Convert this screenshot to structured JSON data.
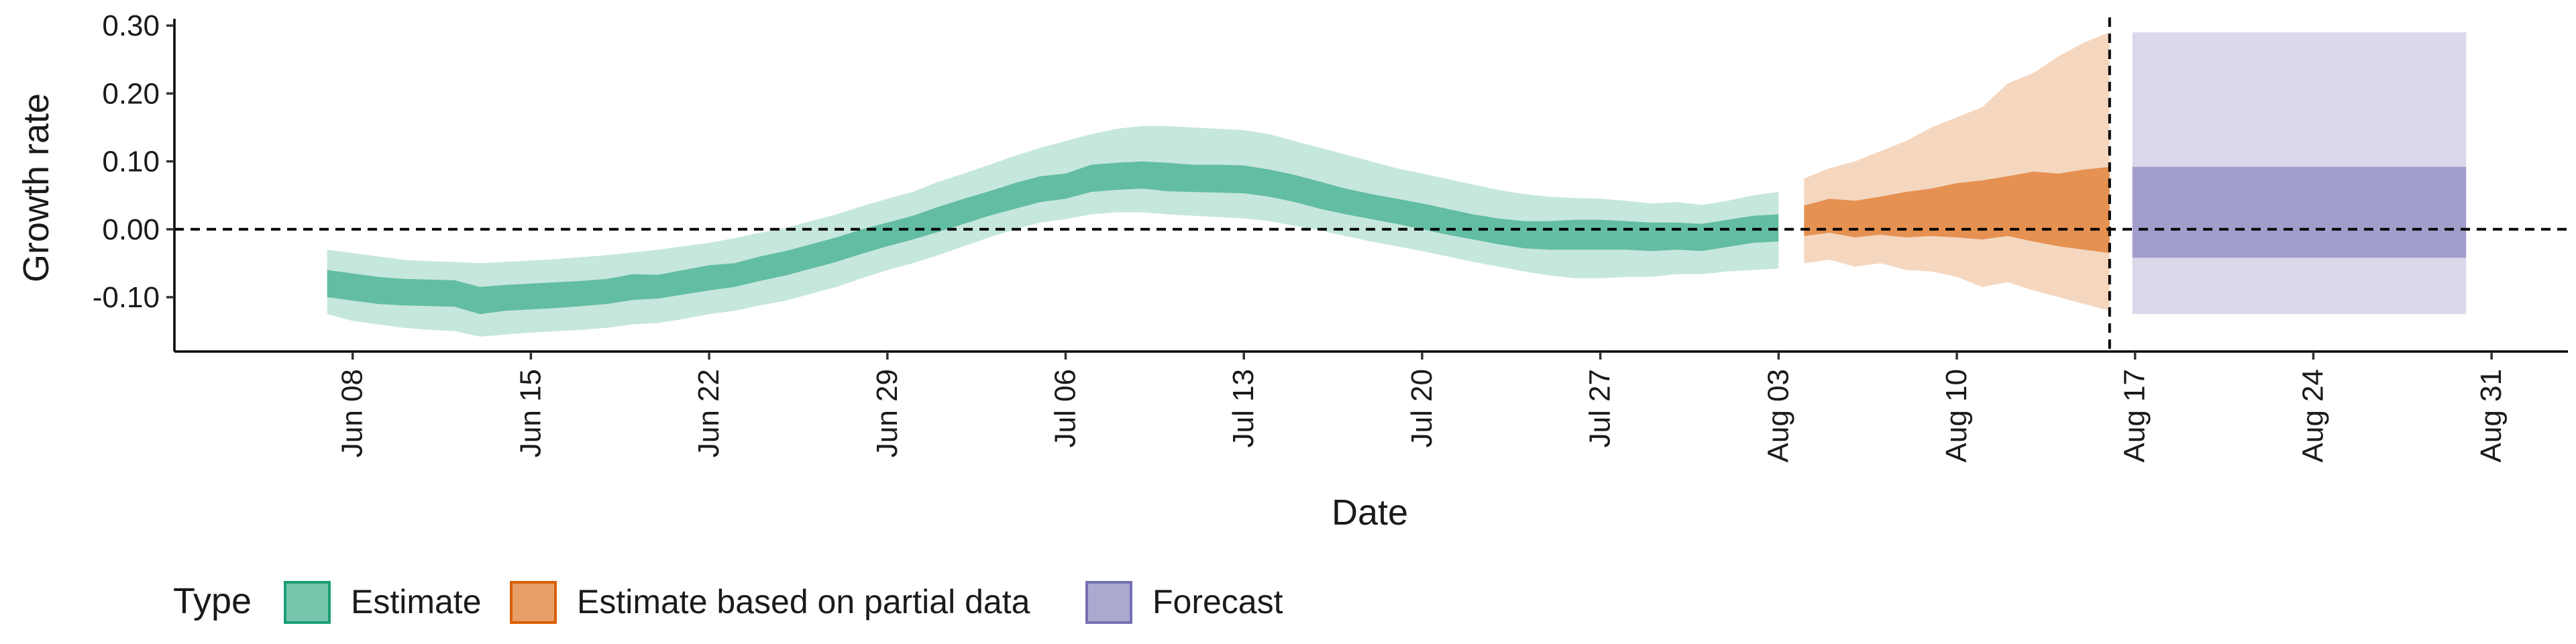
{
  "chart_data": {
    "type": "area",
    "xlabel": "Date",
    "ylabel": "Growth rate",
    "x_range": [
      "2020-06-01",
      "2020-09-03"
    ],
    "ylim": [
      -0.18,
      0.31
    ],
    "y_ticks": [
      {
        "value": 0.3,
        "label": "0.30"
      },
      {
        "value": 0.2,
        "label": "0.20"
      },
      {
        "value": 0.1,
        "label": "0.10"
      },
      {
        "value": 0.0,
        "label": "0.00"
      },
      {
        "value": -0.1,
        "label": "-0.10"
      }
    ],
    "x_ticks": [
      {
        "date": "2020-06-08",
        "label": "Jun 08"
      },
      {
        "date": "2020-06-15",
        "label": "Jun 15"
      },
      {
        "date": "2020-06-22",
        "label": "Jun 22"
      },
      {
        "date": "2020-06-29",
        "label": "Jun 29"
      },
      {
        "date": "2020-07-06",
        "label": "Jul 06"
      },
      {
        "date": "2020-07-13",
        "label": "Jul 13"
      },
      {
        "date": "2020-07-20",
        "label": "Jul 20"
      },
      {
        "date": "2020-07-27",
        "label": "Jul 27"
      },
      {
        "date": "2020-08-03",
        "label": "Aug 03"
      },
      {
        "date": "2020-08-10",
        "label": "Aug 10"
      },
      {
        "date": "2020-08-17",
        "label": "Aug 17"
      },
      {
        "date": "2020-08-24",
        "label": "Aug 24"
      },
      {
        "date": "2020-08-31",
        "label": "Aug 31"
      }
    ],
    "reference_lines": [
      {
        "orientation": "horizontal",
        "value": 0,
        "style": "dashed"
      },
      {
        "orientation": "vertical",
        "date": "2020-08-16",
        "style": "dashed"
      }
    ],
    "legend": {
      "title": "Type",
      "position": "bottom",
      "items": [
        {
          "label": "Estimate",
          "color": "#1b9e77"
        },
        {
          "label": "Estimate based on partial data",
          "color": "#d95f02"
        },
        {
          "label": "Forecast",
          "color": "#7570b3"
        }
      ]
    },
    "series": [
      {
        "name": "Estimate",
        "color": "#1b9e77",
        "points": [
          {
            "date": "2020-06-07",
            "lower90": -0.125,
            "lower50": -0.1,
            "upper50": -0.06,
            "upper90": -0.03
          },
          {
            "date": "2020-06-08",
            "lower90": -0.135,
            "lower50": -0.105,
            "upper50": -0.065,
            "upper90": -0.035
          },
          {
            "date": "2020-06-09",
            "lower90": -0.14,
            "lower50": -0.11,
            "upper50": -0.07,
            "upper90": -0.04
          },
          {
            "date": "2020-06-10",
            "lower90": -0.145,
            "lower50": -0.112,
            "upper50": -0.073,
            "upper90": -0.045
          },
          {
            "date": "2020-06-11",
            "lower90": -0.148,
            "lower50": -0.113,
            "upper50": -0.074,
            "upper90": -0.047
          },
          {
            "date": "2020-06-12",
            "lower90": -0.15,
            "lower50": -0.114,
            "upper50": -0.075,
            "upper90": -0.048
          },
          {
            "date": "2020-06-13",
            "lower90": -0.158,
            "lower50": -0.125,
            "upper50": -0.085,
            "upper90": -0.05
          },
          {
            "date": "2020-06-14",
            "lower90": -0.155,
            "lower50": -0.12,
            "upper50": -0.082,
            "upper90": -0.048
          },
          {
            "date": "2020-06-15",
            "lower90": -0.152,
            "lower50": -0.118,
            "upper50": -0.08,
            "upper90": -0.046
          },
          {
            "date": "2020-06-16",
            "lower90": -0.15,
            "lower50": -0.116,
            "upper50": -0.078,
            "upper90": -0.044
          },
          {
            "date": "2020-06-17",
            "lower90": -0.148,
            "lower50": -0.113,
            "upper50": -0.076,
            "upper90": -0.041
          },
          {
            "date": "2020-06-18",
            "lower90": -0.145,
            "lower50": -0.11,
            "upper50": -0.073,
            "upper90": -0.038
          },
          {
            "date": "2020-06-19",
            "lower90": -0.14,
            "lower50": -0.104,
            "upper50": -0.066,
            "upper90": -0.034
          },
          {
            "date": "2020-06-20",
            "lower90": -0.138,
            "lower50": -0.102,
            "upper50": -0.067,
            "upper90": -0.03
          },
          {
            "date": "2020-06-21",
            "lower90": -0.132,
            "lower50": -0.096,
            "upper50": -0.06,
            "upper90": -0.025
          },
          {
            "date": "2020-06-22",
            "lower90": -0.125,
            "lower50": -0.09,
            "upper50": -0.053,
            "upper90": -0.02
          },
          {
            "date": "2020-06-23",
            "lower90": -0.12,
            "lower50": -0.085,
            "upper50": -0.05,
            "upper90": -0.013
          },
          {
            "date": "2020-06-24",
            "lower90": -0.112,
            "lower50": -0.076,
            "upper50": -0.04,
            "upper90": -0.005
          },
          {
            "date": "2020-06-25",
            "lower90": -0.105,
            "lower50": -0.068,
            "upper50": -0.032,
            "upper90": 0.002
          },
          {
            "date": "2020-06-26",
            "lower90": -0.095,
            "lower50": -0.058,
            "upper50": -0.022,
            "upper90": 0.012
          },
          {
            "date": "2020-06-27",
            "lower90": -0.085,
            "lower50": -0.048,
            "upper50": -0.012,
            "upper90": 0.022
          },
          {
            "date": "2020-06-28",
            "lower90": -0.072,
            "lower50": -0.036,
            "upper50": 0.0,
            "upper90": 0.034
          },
          {
            "date": "2020-06-29",
            "lower90": -0.06,
            "lower50": -0.025,
            "upper50": 0.01,
            "upper90": 0.045
          },
          {
            "date": "2020-06-30",
            "lower90": -0.05,
            "lower50": -0.015,
            "upper50": 0.02,
            "upper90": 0.055
          },
          {
            "date": "2020-07-01",
            "lower90": -0.038,
            "lower50": -0.004,
            "upper50": 0.033,
            "upper90": 0.07
          },
          {
            "date": "2020-07-02",
            "lower90": -0.025,
            "lower50": 0.008,
            "upper50": 0.045,
            "upper90": 0.082
          },
          {
            "date": "2020-07-03",
            "lower90": -0.012,
            "lower50": 0.02,
            "upper50": 0.056,
            "upper90": 0.095
          },
          {
            "date": "2020-07-04",
            "lower90": 0.0,
            "lower50": 0.03,
            "upper50": 0.068,
            "upper90": 0.108
          },
          {
            "date": "2020-07-05",
            "lower90": 0.01,
            "lower50": 0.04,
            "upper50": 0.078,
            "upper90": 0.12
          },
          {
            "date": "2020-07-06",
            "lower90": 0.015,
            "lower50": 0.045,
            "upper50": 0.082,
            "upper90": 0.13
          },
          {
            "date": "2020-07-07",
            "lower90": 0.022,
            "lower50": 0.055,
            "upper50": 0.095,
            "upper90": 0.14
          },
          {
            "date": "2020-07-08",
            "lower90": 0.025,
            "lower50": 0.058,
            "upper50": 0.098,
            "upper90": 0.148
          },
          {
            "date": "2020-07-09",
            "lower90": 0.025,
            "lower50": 0.06,
            "upper50": 0.1,
            "upper90": 0.152
          },
          {
            "date": "2020-07-10",
            "lower90": 0.022,
            "lower50": 0.056,
            "upper50": 0.098,
            "upper90": 0.152
          },
          {
            "date": "2020-07-11",
            "lower90": 0.02,
            "lower50": 0.055,
            "upper50": 0.095,
            "upper90": 0.15
          },
          {
            "date": "2020-07-12",
            "lower90": 0.018,
            "lower50": 0.054,
            "upper50": 0.095,
            "upper90": 0.148
          },
          {
            "date": "2020-07-13",
            "lower90": 0.016,
            "lower50": 0.053,
            "upper50": 0.094,
            "upper90": 0.146
          },
          {
            "date": "2020-07-14",
            "lower90": 0.012,
            "lower50": 0.048,
            "upper50": 0.088,
            "upper90": 0.14
          },
          {
            "date": "2020-07-15",
            "lower90": 0.005,
            "lower50": 0.04,
            "upper50": 0.08,
            "upper90": 0.13
          },
          {
            "date": "2020-07-16",
            "lower90": -0.002,
            "lower50": 0.03,
            "upper50": 0.07,
            "upper90": 0.12
          },
          {
            "date": "2020-07-17",
            "lower90": -0.01,
            "lower50": 0.022,
            "upper50": 0.06,
            "upper90": 0.11
          },
          {
            "date": "2020-07-18",
            "lower90": -0.018,
            "lower50": 0.015,
            "upper50": 0.052,
            "upper90": 0.1
          },
          {
            "date": "2020-07-19",
            "lower90": -0.025,
            "lower50": 0.008,
            "upper50": 0.045,
            "upper90": 0.09
          },
          {
            "date": "2020-07-20",
            "lower90": -0.032,
            "lower50": 0.0,
            "upper50": 0.038,
            "upper90": 0.082
          },
          {
            "date": "2020-07-21",
            "lower90": -0.04,
            "lower50": -0.008,
            "upper50": 0.03,
            "upper90": 0.074
          },
          {
            "date": "2020-07-22",
            "lower90": -0.048,
            "lower50": -0.015,
            "upper50": 0.022,
            "upper90": 0.066
          },
          {
            "date": "2020-07-23",
            "lower90": -0.055,
            "lower50": -0.022,
            "upper50": 0.016,
            "upper90": 0.058
          },
          {
            "date": "2020-07-24",
            "lower90": -0.062,
            "lower50": -0.028,
            "upper50": 0.012,
            "upper90": 0.052
          },
          {
            "date": "2020-07-25",
            "lower90": -0.068,
            "lower50": -0.03,
            "upper50": 0.012,
            "upper90": 0.048
          },
          {
            "date": "2020-07-26",
            "lower90": -0.072,
            "lower50": -0.03,
            "upper50": 0.014,
            "upper90": 0.046
          },
          {
            "date": "2020-07-27",
            "lower90": -0.072,
            "lower50": -0.03,
            "upper50": 0.014,
            "upper90": 0.045
          },
          {
            "date": "2020-07-28",
            "lower90": -0.07,
            "lower50": -0.03,
            "upper50": 0.012,
            "upper90": 0.042
          },
          {
            "date": "2020-07-29",
            "lower90": -0.07,
            "lower50": -0.032,
            "upper50": 0.01,
            "upper90": 0.038
          },
          {
            "date": "2020-07-30",
            "lower90": -0.066,
            "lower50": -0.03,
            "upper50": 0.01,
            "upper90": 0.04
          },
          {
            "date": "2020-07-31",
            "lower90": -0.066,
            "lower50": -0.032,
            "upper50": 0.008,
            "upper90": 0.036
          },
          {
            "date": "2020-08-01",
            "lower90": -0.062,
            "lower50": -0.026,
            "upper50": 0.014,
            "upper90": 0.042
          },
          {
            "date": "2020-08-02",
            "lower90": -0.06,
            "lower50": -0.02,
            "upper50": 0.02,
            "upper90": 0.05
          },
          {
            "date": "2020-08-03",
            "lower90": -0.058,
            "lower50": -0.018,
            "upper50": 0.022,
            "upper90": 0.055
          }
        ]
      },
      {
        "name": "Estimate based on partial data",
        "color": "#d95f02",
        "points": [
          {
            "date": "2020-08-04",
            "lower90": -0.05,
            "lower50": -0.01,
            "upper50": 0.035,
            "upper90": 0.075
          },
          {
            "date": "2020-08-05",
            "lower90": -0.045,
            "lower50": -0.005,
            "upper50": 0.045,
            "upper90": 0.09
          },
          {
            "date": "2020-08-06",
            "lower90": -0.055,
            "lower50": -0.012,
            "upper50": 0.042,
            "upper90": 0.1
          },
          {
            "date": "2020-08-07",
            "lower90": -0.05,
            "lower50": -0.008,
            "upper50": 0.048,
            "upper90": 0.115
          },
          {
            "date": "2020-08-08",
            "lower90": -0.06,
            "lower50": -0.012,
            "upper50": 0.055,
            "upper90": 0.13
          },
          {
            "date": "2020-08-09",
            "lower90": -0.062,
            "lower50": -0.01,
            "upper50": 0.06,
            "upper90": 0.15
          },
          {
            "date": "2020-08-10",
            "lower90": -0.07,
            "lower50": -0.012,
            "upper50": 0.068,
            "upper90": 0.165
          },
          {
            "date": "2020-08-11",
            "lower90": -0.085,
            "lower50": -0.015,
            "upper50": 0.072,
            "upper90": 0.18
          },
          {
            "date": "2020-08-12",
            "lower90": -0.078,
            "lower50": -0.01,
            "upper50": 0.078,
            "upper90": 0.215
          },
          {
            "date": "2020-08-13",
            "lower90": -0.09,
            "lower50": -0.018,
            "upper50": 0.085,
            "upper90": 0.23
          },
          {
            "date": "2020-08-14",
            "lower90": -0.1,
            "lower50": -0.025,
            "upper50": 0.082,
            "upper90": 0.255
          },
          {
            "date": "2020-08-15",
            "lower90": -0.11,
            "lower50": -0.03,
            "upper50": 0.088,
            "upper90": 0.275
          },
          {
            "date": "2020-08-16",
            "lower90": -0.12,
            "lower50": -0.035,
            "upper50": 0.092,
            "upper90": 0.29
          }
        ]
      },
      {
        "name": "Forecast",
        "color": "#7570b3",
        "points": [
          {
            "date": "2020-08-17",
            "lower90": -0.125,
            "lower50": -0.042,
            "upper50": 0.092,
            "upper90": 0.29
          },
          {
            "date": "2020-08-30",
            "lower90": -0.125,
            "lower50": -0.042,
            "upper50": 0.092,
            "upper90": 0.29
          }
        ]
      }
    ]
  }
}
